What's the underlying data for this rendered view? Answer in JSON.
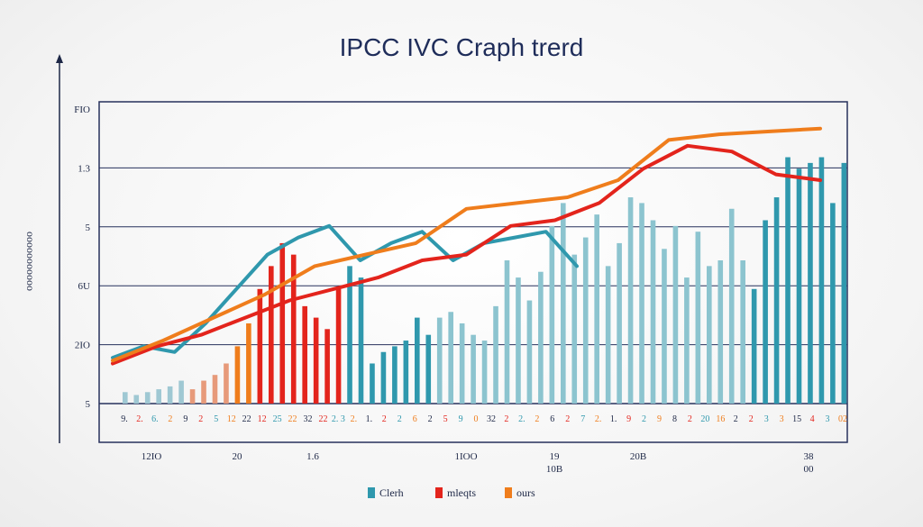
{
  "chart_data": {
    "type": "bar",
    "title": "IPCC IVC Craph trerd",
    "ylabel": "ooooooooooo",
    "xlabel": "",
    "y_tick_labels": [
      "FIO",
      "1.3",
      "5",
      "6U",
      "2IO",
      "5"
    ],
    "x_tick_labels": [
      "12IO",
      "20",
      "1.6",
      "1IOO",
      "19",
      "20B",
      "38"
    ],
    "x_tick_sublabels": [
      "",
      "",
      "",
      "",
      "10B",
      "",
      "00"
    ],
    "category_labels": [
      "9.",
      "2.",
      "6.",
      "2",
      "9",
      "2",
      "5",
      "12",
      "22",
      "12",
      "25",
      "22",
      "32",
      "22",
      "2. 3",
      "2.",
      "1.",
      "2",
      "2",
      "6",
      "2",
      "5",
      "9",
      "0",
      "32",
      "2",
      "2.",
      "2",
      "6",
      "2",
      "7",
      "2.",
      "1.",
      "9",
      "2",
      "9",
      "8",
      "2",
      "20",
      "16",
      "2",
      "2",
      "3",
      "3",
      "15",
      "4",
      "3",
      "02"
    ],
    "legend": [
      "Clerh",
      "mleqts",
      "ours"
    ],
    "series": [
      {
        "name": "Clerh",
        "color": "#2f98ad",
        "values": [
          16,
          20,
          18,
          28,
          40,
          52,
          58,
          62,
          50,
          56,
          60,
          50,
          56,
          58,
          60,
          48
        ]
      },
      {
        "name": "mleqts",
        "color": "#e3241c",
        "values": [
          14,
          20,
          24,
          30,
          36,
          40,
          44,
          50,
          52,
          62,
          64,
          70,
          82,
          90,
          88,
          80,
          78
        ]
      },
      {
        "name": "ours",
        "color": "#ef7d1c",
        "values": [
          15,
          22,
          30,
          38,
          48,
          52,
          56,
          68,
          70,
          72,
          78,
          92,
          94,
          95,
          96
        ]
      }
    ],
    "bars": [
      {
        "color": "#9fc8d3",
        "values": [
          4,
          3,
          4,
          5,
          6,
          8
        ]
      },
      {
        "color": "#e79a7a",
        "values": [
          5,
          8,
          10,
          14
        ]
      },
      {
        "color": "#ef7d1c",
        "values": [
          20,
          28
        ]
      },
      {
        "color": "#e3241c",
        "values": [
          40,
          48,
          56,
          52,
          34,
          30,
          26,
          40
        ]
      },
      {
        "color": "#2f98ad",
        "values": [
          48,
          44,
          14,
          18,
          20,
          22,
          30,
          24
        ]
      },
      {
        "color": "#8cc4cf",
        "values": [
          30,
          32,
          28,
          24,
          22,
          34,
          50,
          44,
          36,
          46,
          62,
          70,
          52,
          58,
          66,
          48,
          56,
          72,
          70,
          64,
          54,
          62,
          44,
          60,
          48,
          50,
          68,
          50
        ]
      },
      {
        "color": "#2f98ad",
        "values": [
          40,
          64,
          72,
          86,
          82,
          84,
          86,
          70,
          84
        ]
      }
    ]
  }
}
